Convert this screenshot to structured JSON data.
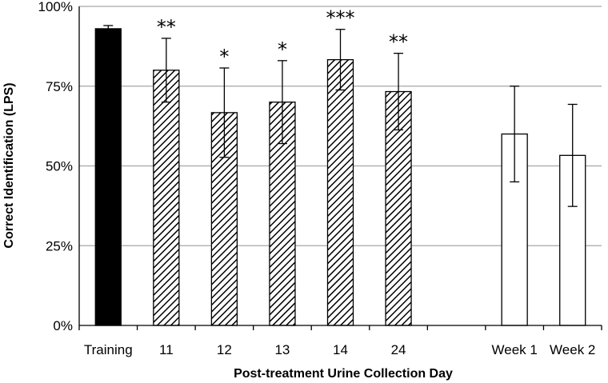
{
  "chart_data": {
    "type": "bar",
    "categories": [
      "Training",
      "11",
      "12",
      "13",
      "14",
      "24",
      "",
      "Week 1",
      "Week 2"
    ],
    "values": [
      93,
      80,
      66.7,
      70,
      83.3,
      73.3,
      null,
      60,
      53.3
    ],
    "errors": [
      1,
      10,
      14,
      13,
      9.5,
      12,
      null,
      15,
      16
    ],
    "significance": [
      "",
      "**",
      "*",
      "*",
      "***",
      "**",
      "",
      "",
      ""
    ],
    "fills": [
      "solid",
      "hatched",
      "hatched",
      "hatched",
      "hatched",
      "hatched",
      "none",
      "open",
      "open"
    ],
    "xlabel": "Post-treatment Urine Collection Day",
    "ylabel": "Correct Identification (LPS)",
    "ylim": [
      0,
      100
    ],
    "yticks": [
      0,
      25,
      50,
      75,
      100
    ],
    "ytick_labels": [
      "0%",
      "25%",
      "50%",
      "75%",
      "100%"
    ],
    "grid": true,
    "colors": {
      "solid": "#000000",
      "hatch": "#000000",
      "open": "#ffffff",
      "grid": "#a6a6a6"
    }
  }
}
